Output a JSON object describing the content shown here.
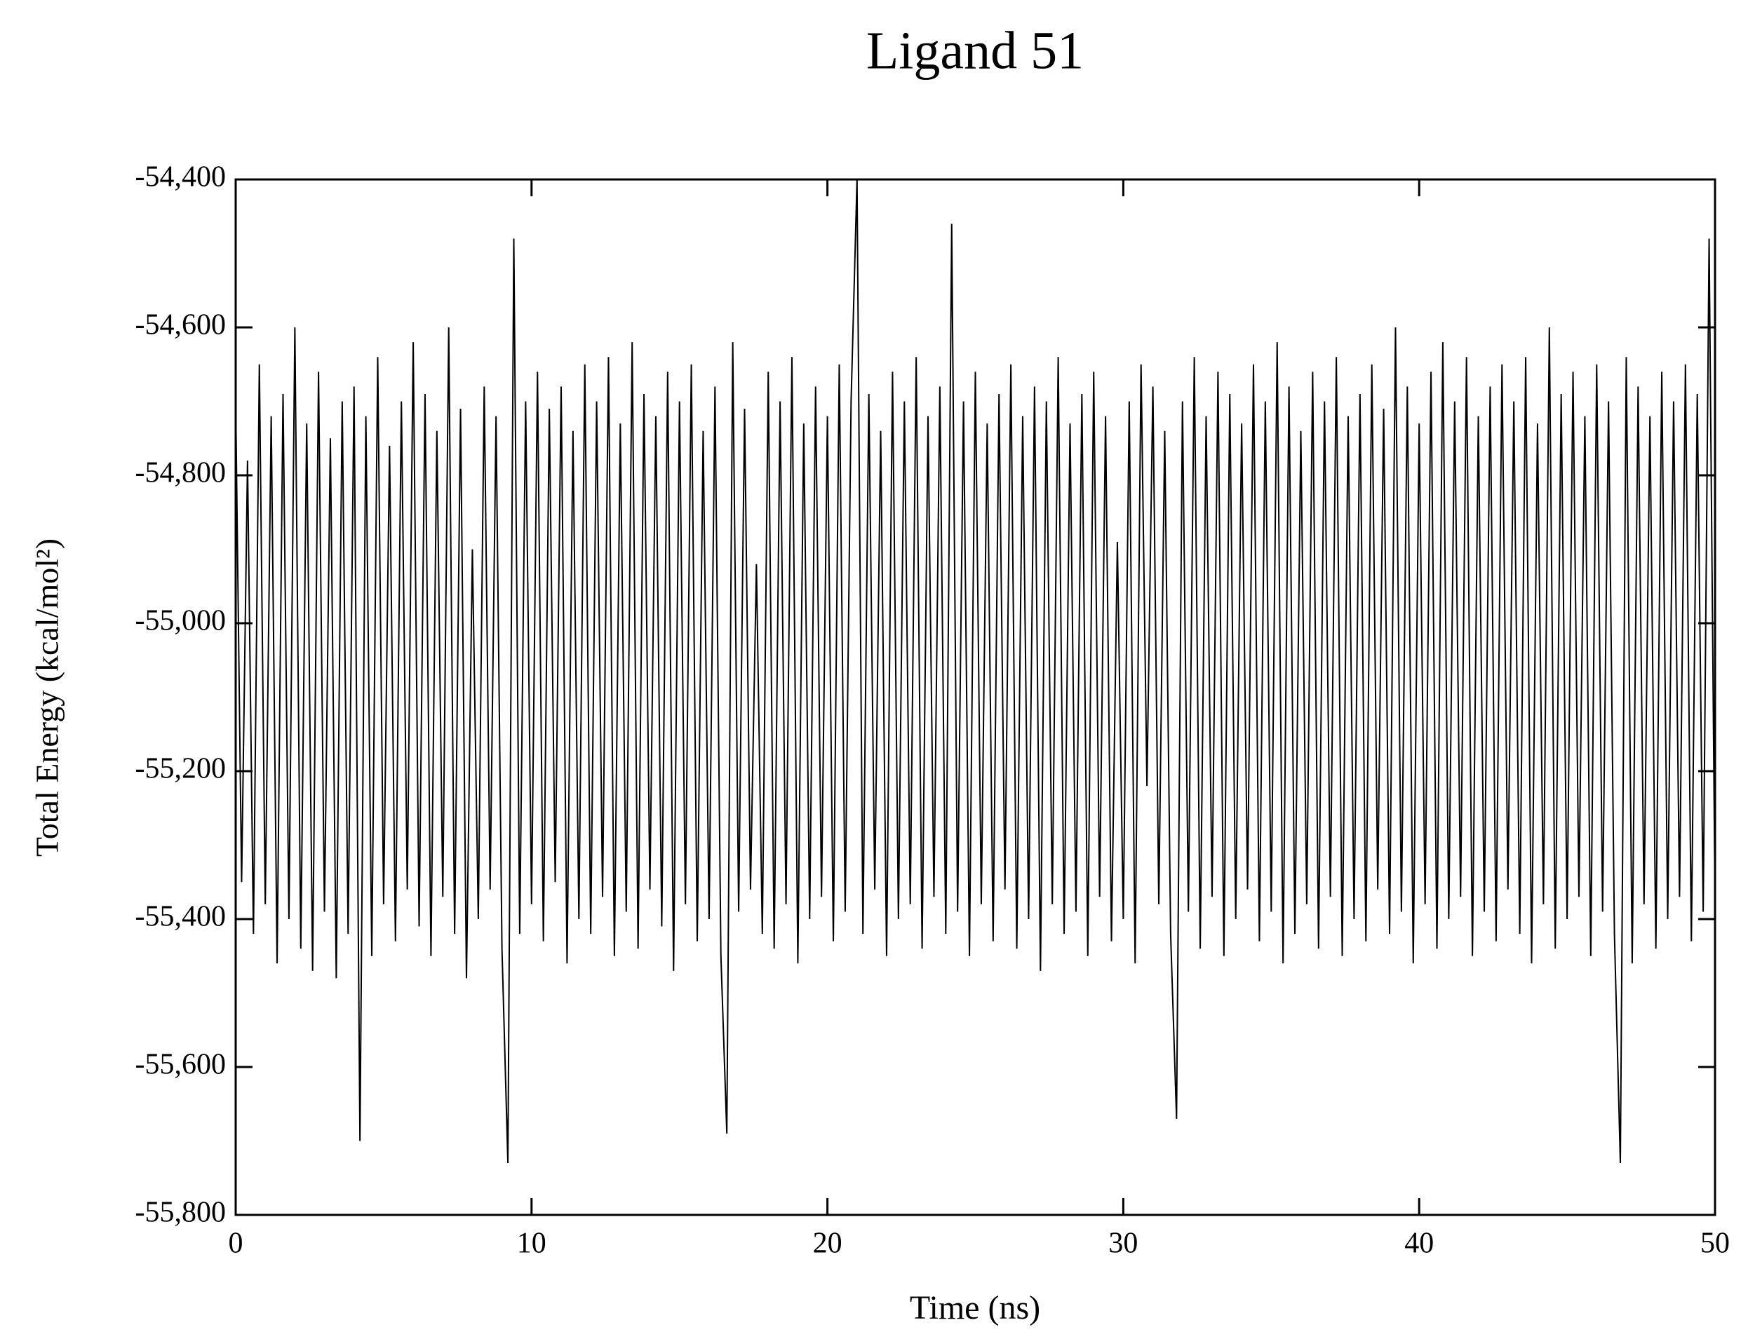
{
  "chart_data": {
    "type": "line",
    "title": "Ligand 51",
    "xlabel": "Time (ns)",
    "ylabel": "Total Energy (kcal/mol²)",
    "color": "#000000",
    "xlim": [
      0,
      50
    ],
    "xticks": [
      0,
      10,
      20,
      30,
      40,
      50
    ],
    "ylim": [
      -55800,
      -54400
    ],
    "yticks": [
      {
        "value": -55800,
        "label": "-55,800"
      },
      {
        "value": -55600,
        "label": "-55,600"
      },
      {
        "value": -55400,
        "label": "-55,400"
      },
      {
        "value": -55200,
        "label": "-55,200"
      },
      {
        "value": -55000,
        "label": "-55,000"
      },
      {
        "value": -54800,
        "label": "-54,800"
      },
      {
        "value": -54600,
        "label": "-54,600"
      },
      {
        "value": -54400,
        "label": "-54,400"
      }
    ],
    "x": [
      0,
      0.2,
      0.4,
      0.6,
      0.8,
      1,
      1.2,
      1.4,
      1.6,
      1.8,
      2,
      2.2,
      2.4,
      2.6,
      2.8,
      3,
      3.2,
      3.4,
      3.6,
      3.8,
      4,
      4.2,
      4.4,
      4.6,
      4.8,
      5,
      5.2,
      5.4,
      5.6,
      5.8,
      6,
      6.2,
      6.4,
      6.6,
      6.8,
      7,
      7.2,
      7.4,
      7.6,
      7.8,
      8,
      8.2,
      8.4,
      8.6,
      8.8,
      9,
      9.2,
      9.4,
      9.6,
      9.8,
      10,
      10.2,
      10.4,
      10.6,
      10.8,
      11,
      11.2,
      11.4,
      11.6,
      11.8,
      12,
      12.2,
      12.4,
      12.6,
      12.8,
      13,
      13.2,
      13.4,
      13.6,
      13.8,
      14,
      14.2,
      14.4,
      14.6,
      14.8,
      15,
      15.2,
      15.4,
      15.6,
      15.8,
      16,
      16.2,
      16.4,
      16.6,
      16.8,
      17,
      17.2,
      17.4,
      17.6,
      17.8,
      18,
      18.2,
      18.4,
      18.6,
      18.8,
      19,
      19.2,
      19.4,
      19.6,
      19.8,
      20,
      20.2,
      20.4,
      20.6,
      20.8,
      21,
      21.2,
      21.4,
      21.6,
      21.8,
      22,
      22.2,
      22.4,
      22.6,
      22.8,
      23,
      23.2,
      23.4,
      23.6,
      23.8,
      24,
      24.2,
      24.4,
      24.6,
      24.8,
      25,
      25.2,
      25.4,
      25.6,
      25.8,
      26,
      26.2,
      26.4,
      26.6,
      26.8,
      27,
      27.2,
      27.4,
      27.6,
      27.8,
      28,
      28.2,
      28.4,
      28.6,
      28.8,
      29,
      29.2,
      29.4,
      29.6,
      29.8,
      30,
      30.2,
      30.4,
      30.6,
      30.8,
      31,
      31.2,
      31.4,
      31.6,
      31.8,
      32,
      32.2,
      32.4,
      32.6,
      32.8,
      33,
      33.2,
      33.4,
      33.6,
      33.8,
      34,
      34.2,
      34.4,
      34.6,
      34.8,
      35,
      35.2,
      35.4,
      35.6,
      35.8,
      36,
      36.2,
      36.4,
      36.6,
      36.8,
      37,
      37.2,
      37.4,
      37.6,
      37.8,
      38,
      38.2,
      38.4,
      38.6,
      38.8,
      39,
      39.2,
      39.4,
      39.6,
      39.8,
      40,
      40.2,
      40.4,
      40.6,
      40.8,
      41,
      41.2,
      41.4,
      41.6,
      41.8,
      42,
      42.2,
      42.4,
      42.6,
      42.8,
      43,
      43.2,
      43.4,
      43.6,
      43.8,
      44,
      44.2,
      44.4,
      44.6,
      44.8,
      45,
      45.2,
      45.4,
      45.6,
      45.8,
      46,
      46.2,
      46.4,
      46.6,
      46.8,
      47,
      47.2,
      47.4,
      47.6,
      47.8,
      48,
      48.2,
      48.4,
      48.6,
      48.8,
      49,
      49.2,
      49.4,
      49.6,
      49.8,
      50
    ],
    "values": [
      -54700,
      -55350,
      -54780,
      -55420,
      -54650,
      -55380,
      -54720,
      -55460,
      -54690,
      -55400,
      -54600,
      -55440,
      -54730,
      -55470,
      -54660,
      -55390,
      -54750,
      -55480,
      -54700,
      -55420,
      -54680,
      -55700,
      -54720,
      -55450,
      -54640,
      -55380,
      -54760,
      -55430,
      -54700,
      -55360,
      -54620,
      -55410,
      -54690,
      -55450,
      -54740,
      -55370,
      -54600,
      -55420,
      -54710,
      -55480,
      -54900,
      -55400,
      -54680,
      -55360,
      -54720,
      -55440,
      -55730,
      -54480,
      -55420,
      -54700,
      -55380,
      -54660,
      -55430,
      -54710,
      -55350,
      -54680,
      -55460,
      -54740,
      -55400,
      -54650,
      -55420,
      -54700,
      -55370,
      -54640,
      -55450,
      -54730,
      -55390,
      -54620,
      -55440,
      -54690,
      -55360,
      -54720,
      -55410,
      -54660,
      -55470,
      -54700,
      -55380,
      -54650,
      -55430,
      -54740,
      -55400,
      -54680,
      -55450,
      -55690,
      -54620,
      -55390,
      -54710,
      -55360,
      -54920,
      -55420,
      -54660,
      -55440,
      -54700,
      -55380,
      -54640,
      -55460,
      -54730,
      -55400,
      -54680,
      -55370,
      -54720,
      -55430,
      -54650,
      -55390,
      -54700,
      -54400,
      -55420,
      -54690,
      -55360,
      -54740,
      -55450,
      -54660,
      -55400,
      -54700,
      -55380,
      -54640,
      -55440,
      -54720,
      -55370,
      -54680,
      -55420,
      -54460,
      -55390,
      -54700,
      -55450,
      -54660,
      -55380,
      -54730,
      -55430,
      -54690,
      -55360,
      -54650,
      -55440,
      -54720,
      -55400,
      -54680,
      -55470,
      -54700,
      -55380,
      -54640,
      -55420,
      -54730,
      -55390,
      -54690,
      -55450,
      -54660,
      -55370,
      -54720,
      -55430,
      -54890,
      -55400,
      -54700,
      -55460,
      -54650,
      -55220,
      -54680,
      -55380,
      -54740,
      -55420,
      -55670,
      -54700,
      -55390,
      -54640,
      -55440,
      -54720,
      -55370,
      -54660,
      -55450,
      -54690,
      -55400,
      -54730,
      -55360,
      -54650,
      -55430,
      -54700,
      -55390,
      -54620,
      -55460,
      -54680,
      -55420,
      -54740,
      -55380,
      -54660,
      -55440,
      -54700,
      -55370,
      -54640,
      -55450,
      -54720,
      -55400,
      -54690,
      -55430,
      -54650,
      -55360,
      -54710,
      -55420,
      -54600,
      -55390,
      -54680,
      -55460,
      -54730,
      -55380,
      -54660,
      -55440,
      -54620,
      -55400,
      -54700,
      -55370,
      -54640,
      -55450,
      -54720,
      -55390,
      -54680,
      -55430,
      -54650,
      -55360,
      -54700,
      -55420,
      -54640,
      -55460,
      -54730,
      -55380,
      -54600,
      -55440,
      -54690,
      -55400,
      -54660,
      -55370,
      -54720,
      -55450,
      -54650,
      -55390,
      -54700,
      -55420,
      -55730,
      -54640,
      -55460,
      -54680,
      -55380,
      -54720,
      -55440,
      -54660,
      -55400,
      -54700,
      -55370,
      -54650,
      -55430,
      -54690,
      -55390,
      -54480,
      -55380
    ]
  }
}
